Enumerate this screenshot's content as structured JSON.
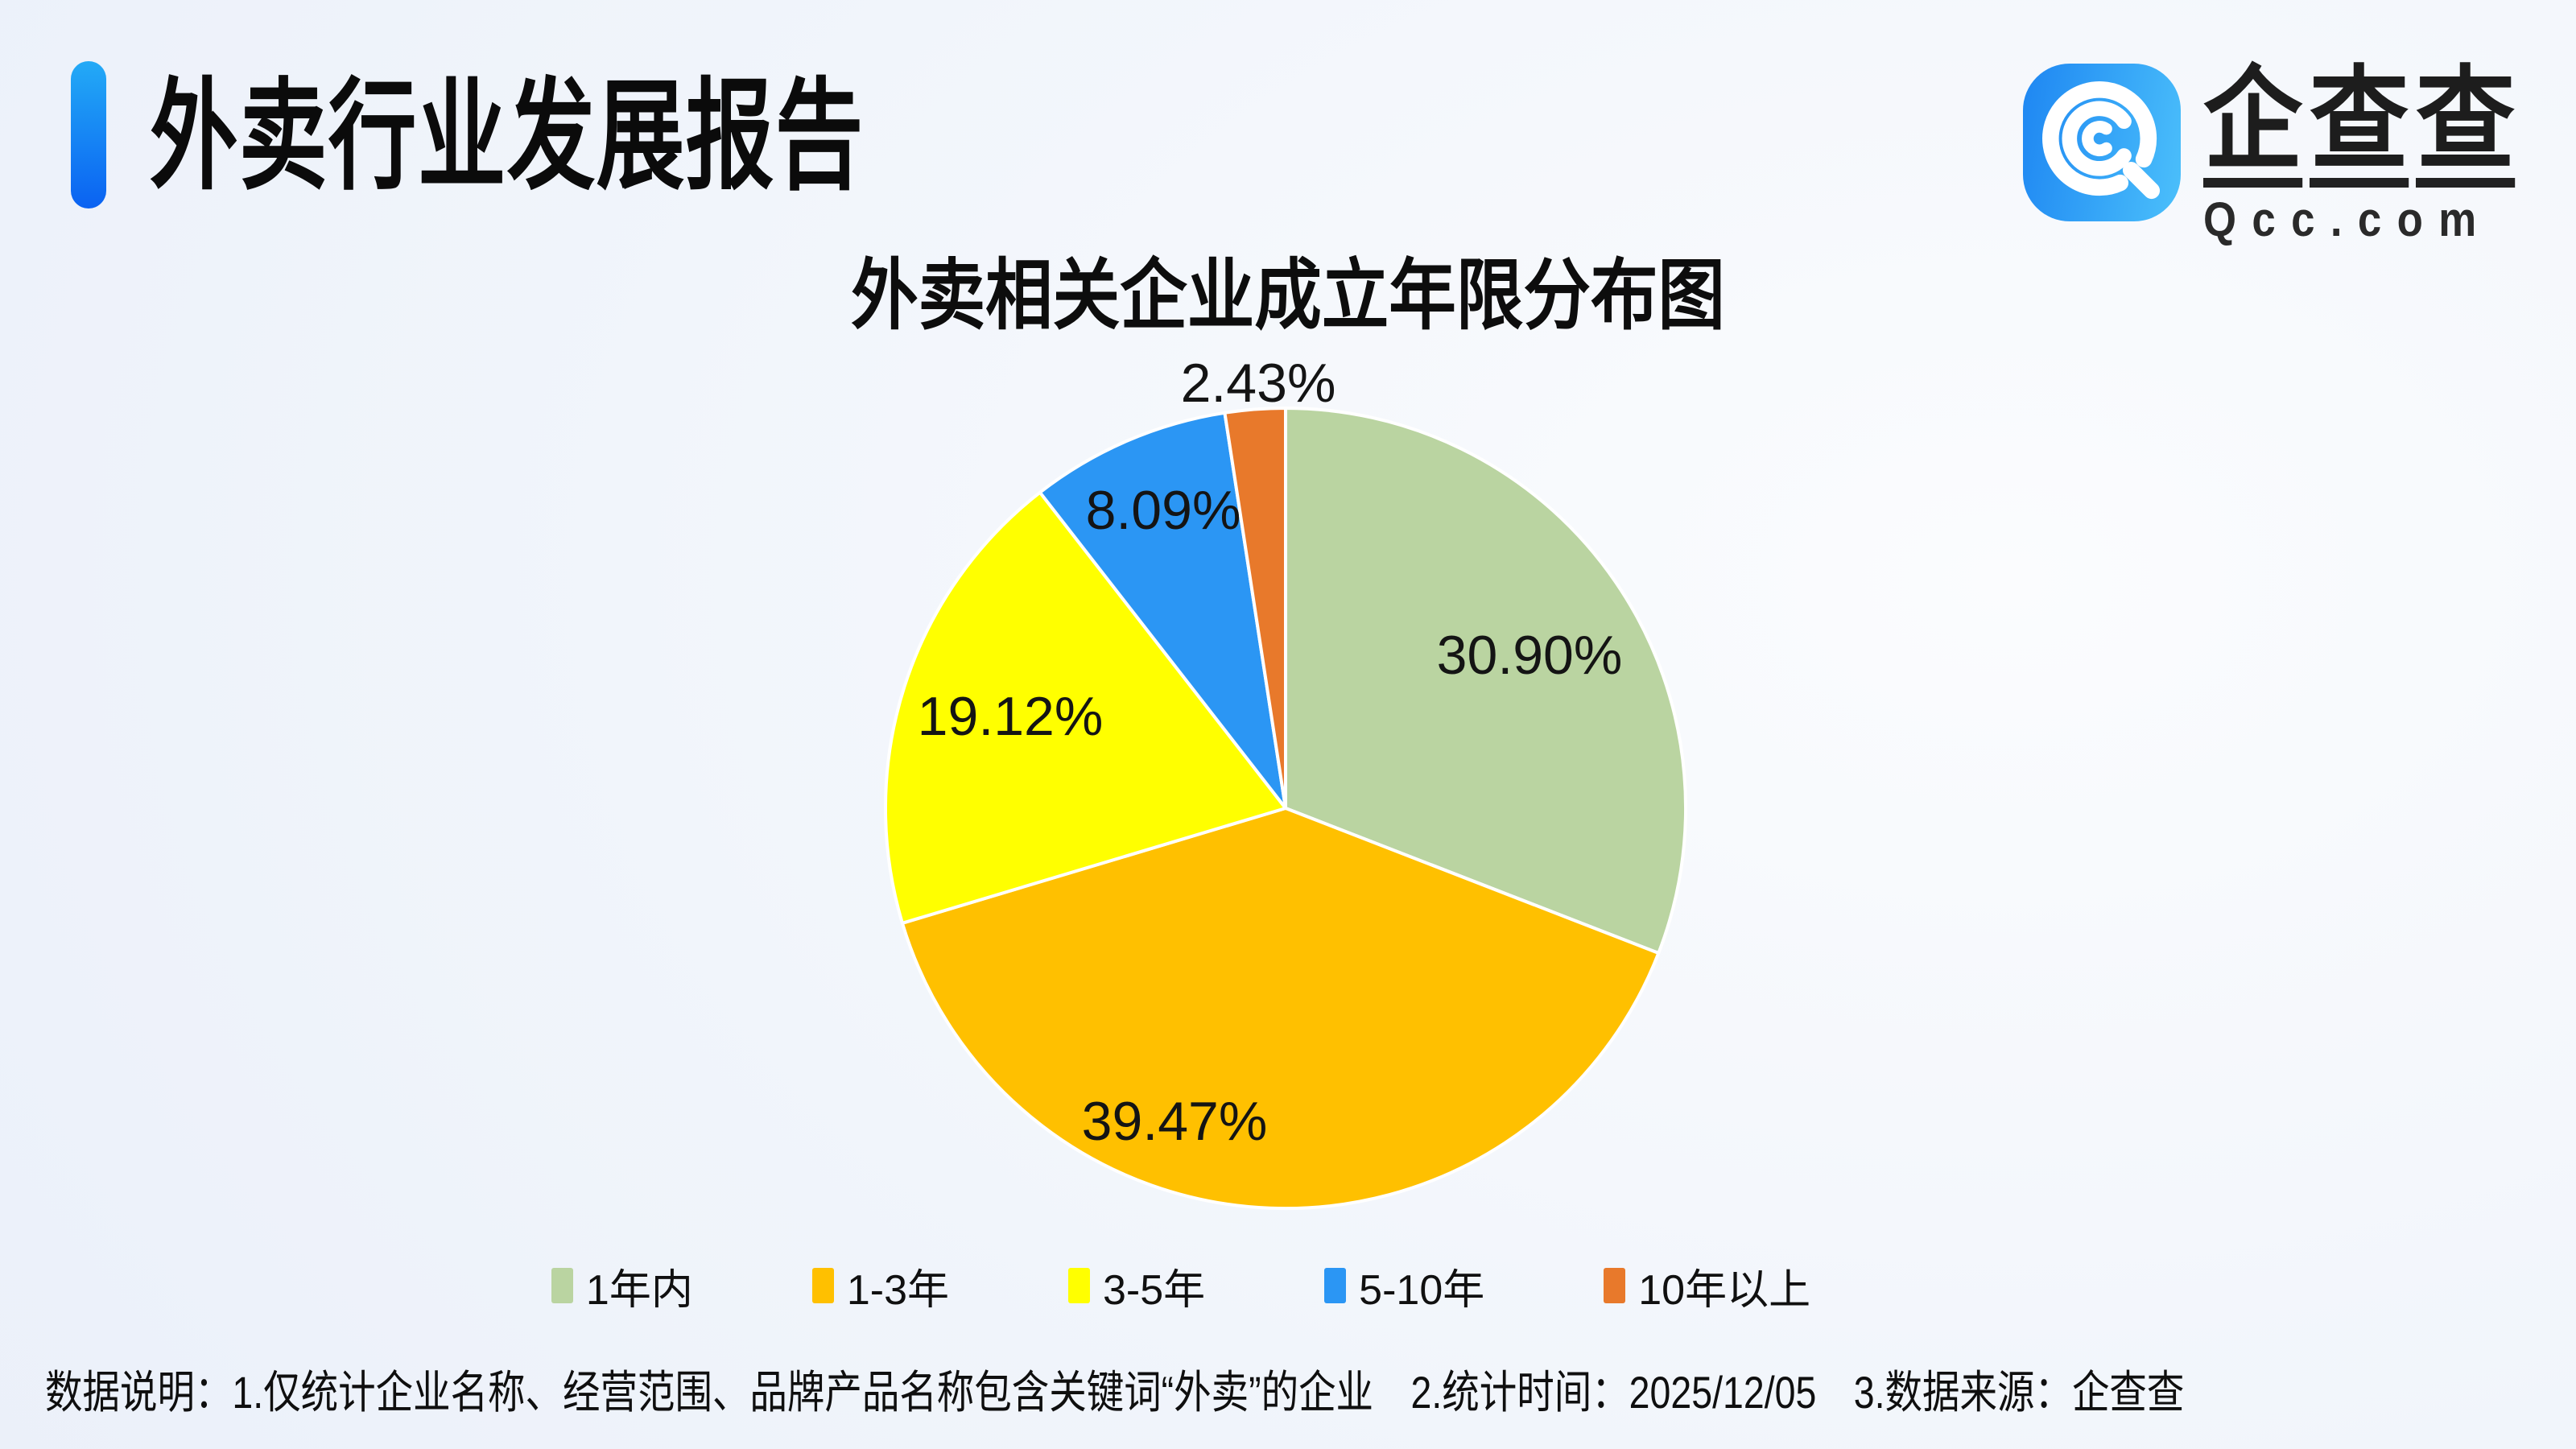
{
  "header": {
    "title": "外卖行业发展报告"
  },
  "logo": {
    "name_chars": [
      "企",
      "查",
      "查"
    ],
    "domain": "Qcc.com",
    "icon": "qcc-magnifier-icon",
    "icon_color": "#2f9ff7"
  },
  "theme": {
    "accent_blue": "#0f6cf2",
    "background_tint": "#e9eff9",
    "title_color": "#0b0b0b",
    "slice_border": "#ffffff"
  },
  "chart_data": {
    "type": "pie",
    "title": "外卖相关企业成立年限分布图",
    "unit": "%",
    "start_angle": "12-o-clock",
    "direction": "clockwise",
    "legend_position": "bottom",
    "categories": [
      "1年内",
      "1-3年",
      "3-5年",
      "5-10年",
      "10年以上"
    ],
    "values": [
      30.9,
      39.47,
      19.12,
      8.09,
      2.43
    ],
    "segments": [
      {
        "label": "1年内",
        "value": 30.9,
        "display": "30.90%",
        "color": "#bad4a1"
      },
      {
        "label": "1-3年",
        "value": 39.47,
        "display": "39.47%",
        "color": "#ffc000"
      },
      {
        "label": "3-5年",
        "value": 19.12,
        "display": "19.12%",
        "color": "#ffff00"
      },
      {
        "label": "5-10年",
        "value": 8.09,
        "display": "8.09%",
        "color": "#2b96f4"
      },
      {
        "label": "10年以上",
        "value": 2.43,
        "display": "2.43%",
        "color": "#e8792b"
      }
    ]
  },
  "footer": {
    "note": "数据说明：1.仅统计企业名称、经营范围、品牌产品名称包含关键词“外卖”的企业　2.统计时间：2025/12/05　3.数据来源：企查查"
  }
}
